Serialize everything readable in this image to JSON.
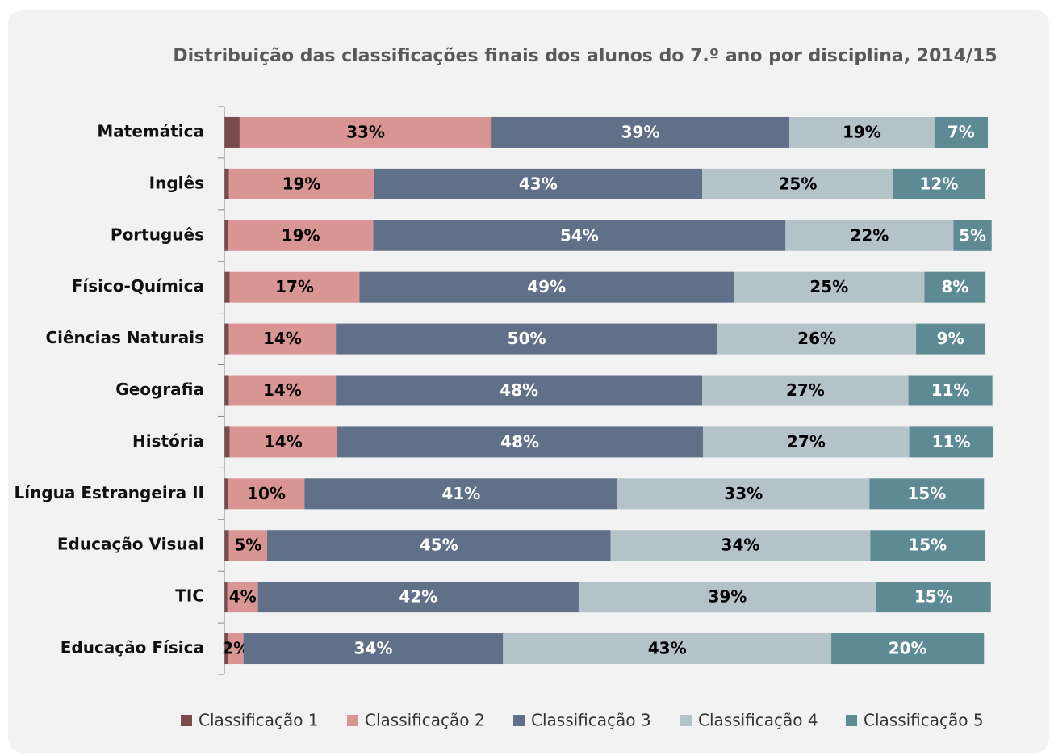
{
  "chart_data": {
    "type": "stacked_bar_horizontal",
    "title": "Distribuição das classificações finais dos alunos do 7.º ano por disciplina,  2014/15",
    "categories": [
      "Matemática",
      "Inglês",
      "Português",
      "Físico-Química",
      "Ciências Naturais",
      "Geografia",
      "História",
      "Língua Estrangeira II",
      "Educação Visual",
      "TIC",
      "Educação Física"
    ],
    "xlim": [
      0,
      100
    ],
    "legend": "bottom",
    "series": [
      {
        "name": "Classificação 1",
        "color": "#7b4a4a",
        "label_color": "#000000",
        "values": [
          2,
          0.6,
          0.5,
          0.7,
          0.6,
          0.6,
          0.7,
          0.5,
          0.6,
          0.4,
          0.5
        ],
        "value_labels": [
          "2%",
          null,
          null,
          null,
          null,
          null,
          null,
          null,
          null,
          null,
          null
        ]
      },
      {
        "name": "Classificação 2",
        "color": "#d99594",
        "label_color": "#000000",
        "values": [
          33,
          19,
          19,
          17,
          14,
          14,
          14,
          10,
          5,
          4,
          2
        ],
        "value_labels": [
          "33%",
          "19%",
          "19%",
          "17%",
          "14%",
          "14%",
          "14%",
          "10%",
          "5%",
          "4%",
          "2%"
        ]
      },
      {
        "name": "Classificação 3",
        "color": "#607089",
        "label_color": "#ffffff",
        "values": [
          39,
          43,
          54,
          49,
          50,
          48,
          48,
          41,
          45,
          42,
          34
        ],
        "value_labels": [
          "39%",
          "43%",
          "54%",
          "49%",
          "50%",
          "48%",
          "48%",
          "41%",
          "45%",
          "42%",
          "34%"
        ]
      },
      {
        "name": "Classificação 4",
        "color": "#b4c3c8",
        "label_color": "#000000",
        "values": [
          19,
          25,
          22,
          25,
          26,
          27,
          27,
          33,
          34,
          39,
          43
        ],
        "value_labels": [
          "19%",
          "25%",
          "22%",
          "25%",
          "26%",
          "27%",
          "27%",
          "33%",
          "34%",
          "39%",
          "43%"
        ]
      },
      {
        "name": "Classificação 5",
        "color": "#5e8a93",
        "label_color": "#ffffff",
        "values": [
          7,
          12,
          5,
          8,
          9,
          11,
          11,
          15,
          15,
          15,
          20
        ],
        "value_labels": [
          "7%",
          "12%",
          "5%",
          "8%",
          "9%",
          "11%",
          "11%",
          "15%",
          "15%",
          "15%",
          "20%"
        ]
      }
    ]
  }
}
